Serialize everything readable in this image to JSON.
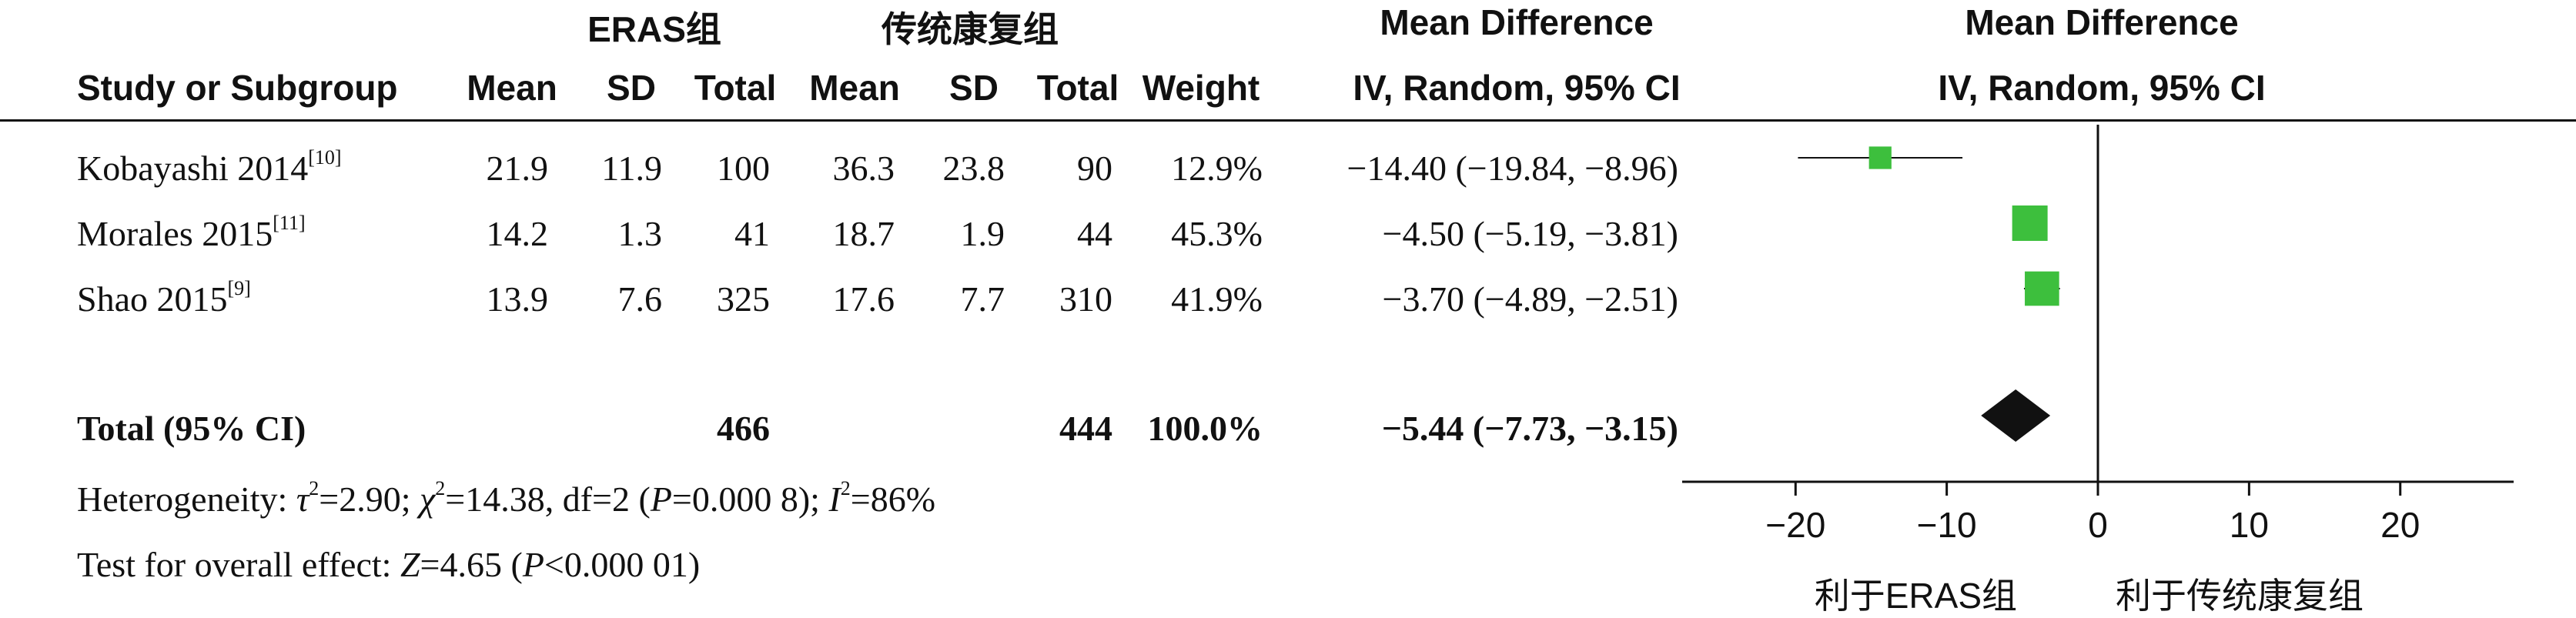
{
  "chart_data": {
    "type": "forest",
    "groups": {
      "experimental": "ERAS组",
      "control": "传统康复组"
    },
    "columns": {
      "study": "Study or Subgroup",
      "mean": "Mean",
      "sd": "SD",
      "total": "Total",
      "weight": "Weight",
      "effect_title": "Mean Difference",
      "effect_method": "IV, Random, 95% CI"
    },
    "studies": [
      {
        "name": "Kobayashi 2014",
        "ref": "[10]",
        "exp_mean": "21.9",
        "exp_sd": "11.9",
        "exp_total": "100",
        "ctl_mean": "36.3",
        "ctl_sd": "23.8",
        "ctl_total": "90",
        "weight_label": "12.9%",
        "ci_label": "−14.40 (−19.84, −8.96)",
        "md": -14.4,
        "lo": -19.84,
        "hi": -8.96,
        "weight": 12.9
      },
      {
        "name": "Morales 2015",
        "ref": "[11]",
        "exp_mean": "14.2",
        "exp_sd": "1.3",
        "exp_total": "41",
        "ctl_mean": "18.7",
        "ctl_sd": "1.9",
        "ctl_total": "44",
        "weight_label": "45.3%",
        "ci_label": "−4.50 (−5.19, −3.81)",
        "md": -4.5,
        "lo": -5.19,
        "hi": -3.81,
        "weight": 45.3
      },
      {
        "name": "Shao 2015",
        "ref": "[9]",
        "exp_mean": "13.9",
        "exp_sd": "7.6",
        "exp_total": "325",
        "ctl_mean": "17.6",
        "ctl_sd": "7.7",
        "ctl_total": "310",
        "weight_label": "41.9%",
        "ci_label": "−3.70 (−4.89, −2.51)",
        "md": -3.7,
        "lo": -4.89,
        "hi": -2.51,
        "weight": 41.9
      }
    ],
    "total": {
      "label": "Total (95% CI)",
      "exp_total": "466",
      "ctl_total": "444",
      "weight_label": "100.0%",
      "ci_label": "−5.44 (−7.73, −3.15)",
      "md": -5.44,
      "lo": -7.73,
      "hi": -3.15
    },
    "heterogeneity": {
      "prefix": "Heterogeneity: ",
      "tau": "τ",
      "tau_rest": "=2.90; ",
      "chi": "χ",
      "chi_rest": "=14.38, df=2 (",
      "p_sym": "P",
      "p_rest": "=0.000 8); ",
      "i_sym": "I",
      "i_rest": "=86%"
    },
    "overall": {
      "prefix": "Test for overall effect: ",
      "z_sym": "Z",
      "z_rest": "=4.65 (",
      "p_sym": "P",
      "p_rest": "<0.000 01)"
    },
    "x_axis": {
      "ticks": [
        -20,
        -10,
        0,
        10,
        20
      ],
      "tick_labels": [
        "−20",
        "−10",
        "0",
        "10",
        "20"
      ],
      "xlim": [
        -27.5,
        27.5
      ]
    },
    "favours_left": "利于ERAS组",
    "favours_right": "利于传统康复组",
    "colors": {
      "box": "#3dbf3d",
      "diamond": "#111111"
    }
  }
}
